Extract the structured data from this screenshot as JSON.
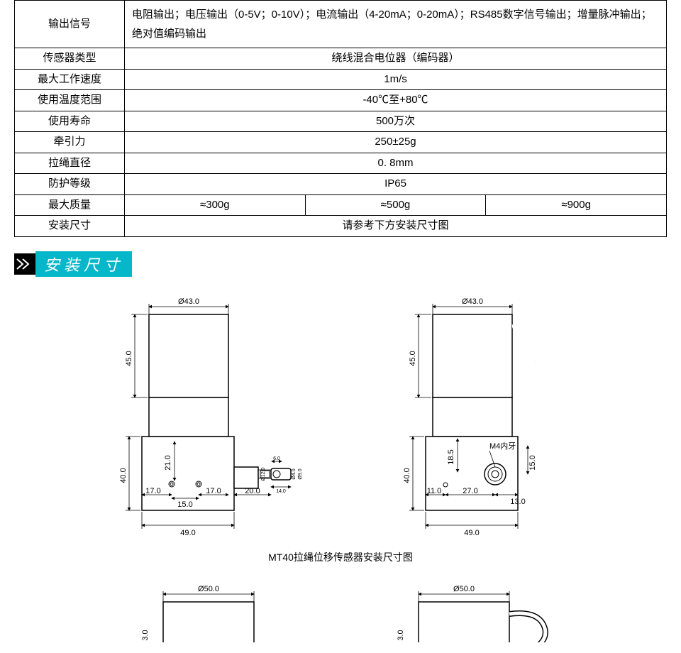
{
  "table": {
    "rows": [
      {
        "label": "输出信号",
        "value": "电阻输出；电压输出（0-5V；0-10V）；电流输出（4-20mA；0-20mA）；RS485数字信号输出；增量脉冲输出；绝对值编码输出",
        "multiline": true
      },
      {
        "label": "传感器类型",
        "value": "绕线混合电位器（编码器）"
      },
      {
        "label": "最大工作速度",
        "value": "1m/s"
      },
      {
        "label": "使用温度范围",
        "value": "-40℃至+80℃"
      },
      {
        "label": "使用寿命",
        "value": "500万次"
      },
      {
        "label": "牵引力",
        "value": "250±25g"
      },
      {
        "label": "拉绳直径",
        "value": "0. 8mm"
      },
      {
        "label": "防护等级",
        "value": "IP65"
      },
      {
        "label": "最大质量",
        "cols": [
          "≈300g",
          "≈500g",
          "≈900g"
        ]
      },
      {
        "label": "安装尺寸",
        "value": "请参考下方安装尺寸图"
      }
    ]
  },
  "section_title": "安装尺寸",
  "drawing1": {
    "top_diameter": "Ø43.0",
    "cylinder_height": "45.0",
    "base_height": "40.0",
    "base_width": "49.0",
    "inner_v": "21.0",
    "h1": "17.0",
    "h2": "15.0",
    "h3": "17.0",
    "h4": "20.0",
    "attach_top": "6.0",
    "attach_d1": "Ø12.0",
    "attach_d2": "Ø4.0",
    "attach_d3": "Ø9.0",
    "attach_bot": "14.0"
  },
  "drawing2": {
    "top_diameter": "Ø43.0",
    "cylinder_height": "45.0",
    "base_height": "40.0",
    "base_width": "49.0",
    "thread_label": "M4内牙",
    "v1": "18.5",
    "v2": "15.0",
    "h1": "11.0",
    "h2": "27.0",
    "h3": "13.0"
  },
  "caption1": "MT40拉绳位移传感器安装尺寸图",
  "drawing3": {
    "top_diameter": "Ø50.0",
    "partial_v": "3.0"
  },
  "drawing4": {
    "top_diameter": "Ø50.0",
    "partial_v": "3.0"
  },
  "colors": {
    "accent": "#06b6c9",
    "line": "#000000",
    "bg": "#ffffff"
  }
}
